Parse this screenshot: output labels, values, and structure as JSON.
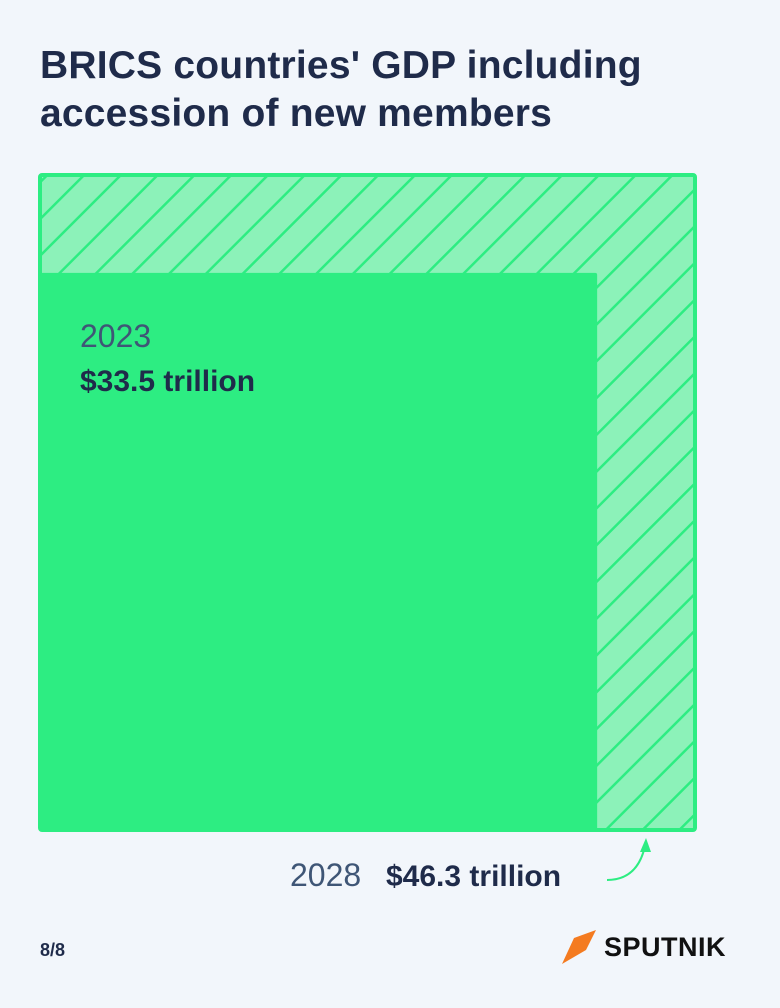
{
  "header": {
    "title": "BRICS countries' GDP including accession of new members"
  },
  "chart_data": {
    "type": "area",
    "unit": "$ trillion",
    "items": [
      {
        "year": "2023",
        "value": 33.5,
        "value_label": "$33.5 trillion"
      },
      {
        "year": "2028",
        "value": 46.3,
        "value_label": "$46.3 trillion"
      }
    ],
    "colors": {
      "2023": "#2ded82",
      "2028_fill": "#8cf2b9",
      "2028_hatch": "#2ded82"
    }
  },
  "footer": {
    "page": "8/8",
    "brand": "SPUTNIK",
    "brand_icon": "sputnik-logo-icon",
    "brand_accent": "#f47b20"
  }
}
